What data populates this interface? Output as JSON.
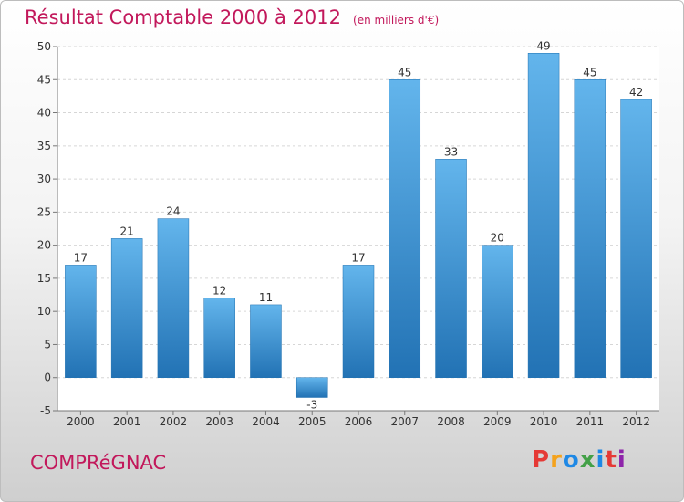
{
  "header": {
    "title": "Résultat Comptable 2000 à 2012",
    "unit": "(en milliers d'€)"
  },
  "footer": {
    "commune": "COMPRéGNAC",
    "brand": "Proxiti",
    "brand_colors": [
      "#e53935",
      "#f4a21c",
      "#1e88e5",
      "#43a047",
      "#1e88e5",
      "#e53935",
      "#8e24aa"
    ]
  },
  "colors": {
    "accent": "#c2185b",
    "bar_light": "#63b5ec",
    "bar_dark": "#2272b4"
  },
  "chart_data": {
    "type": "bar",
    "title": "Résultat Comptable 2000 à 2012",
    "subtitle": "(en milliers d'€)",
    "categories": [
      "2000",
      "2001",
      "2002",
      "2003",
      "2004",
      "2005",
      "2006",
      "2007",
      "2008",
      "2009",
      "2010",
      "2011",
      "2012"
    ],
    "values": [
      17,
      21,
      24,
      12,
      11,
      -3,
      17,
      45,
      33,
      20,
      49,
      45,
      42
    ],
    "ylim": [
      -5,
      50
    ],
    "yticks": [
      -5,
      0,
      5,
      10,
      15,
      20,
      25,
      30,
      35,
      40,
      45,
      50
    ],
    "grid": true,
    "legend": "none"
  }
}
